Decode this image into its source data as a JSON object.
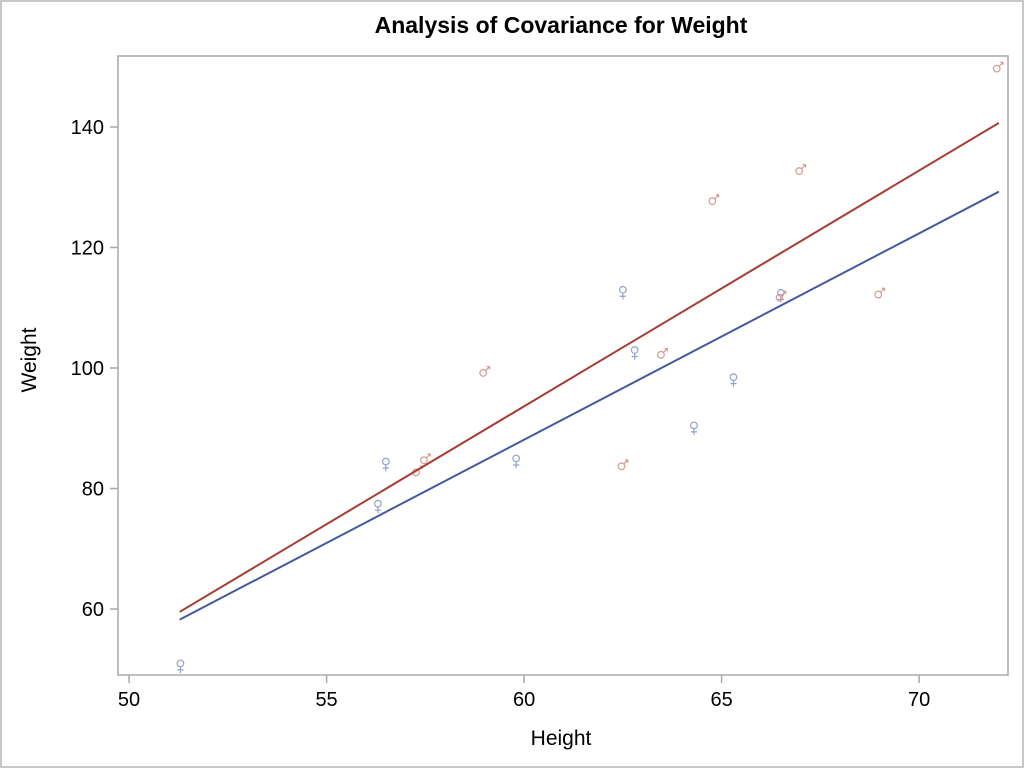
{
  "chart_data": {
    "type": "scatter",
    "title": "Analysis of Covariance for Weight",
    "xlabel": "Height",
    "ylabel": "Weight",
    "xlim": [
      49.72,
      72.25
    ],
    "ylim": [
      49.05,
      151.78
    ],
    "x_ticks": [
      50,
      55,
      60,
      65,
      70
    ],
    "y_ticks": [
      60,
      80,
      100,
      120,
      140
    ],
    "grid": false,
    "legend": "none",
    "series": [
      {
        "name": "Female",
        "marker_glyph": "♀",
        "marker_icon": "venus-symbol-icon",
        "marker_color": "#94A0C8",
        "line_color": "#44599E",
        "points": [
          [
            51.3,
            50.5
          ],
          [
            56.3,
            77
          ],
          [
            56.5,
            84
          ],
          [
            59.8,
            84.5
          ],
          [
            62.5,
            112.5
          ],
          [
            62.8,
            102.5
          ],
          [
            64.3,
            90
          ],
          [
            65.3,
            98
          ],
          [
            66.5,
            112
          ]
        ],
        "fit_line": {
          "x1": 51.3,
          "y1": 58.3,
          "x2": 72,
          "y2": 129.2
        }
      },
      {
        "name": "Male",
        "marker_glyph": "♂",
        "marker_icon": "mars-symbol-icon",
        "marker_color": "#D39B93",
        "line_color": "#A63C32",
        "points": [
          [
            57.3,
            83
          ],
          [
            57.5,
            85
          ],
          [
            59,
            99.5
          ],
          [
            62.5,
            84
          ],
          [
            63.5,
            102.5
          ],
          [
            64.8,
            128
          ],
          [
            66.5,
            112
          ],
          [
            67,
            133
          ],
          [
            69,
            112.5
          ],
          [
            72,
            150
          ]
        ],
        "fit_line": {
          "x1": 51.3,
          "y1": 59.6,
          "x2": 72,
          "y2": 140.6
        }
      }
    ],
    "style": {
      "frame_color": "#A9A9A9",
      "tick_color": "#A9A9A9",
      "border_color": "#C8C8C8",
      "background": "#FFFFFF",
      "text_color": "#000000",
      "tick_font_px": 20
    }
  }
}
